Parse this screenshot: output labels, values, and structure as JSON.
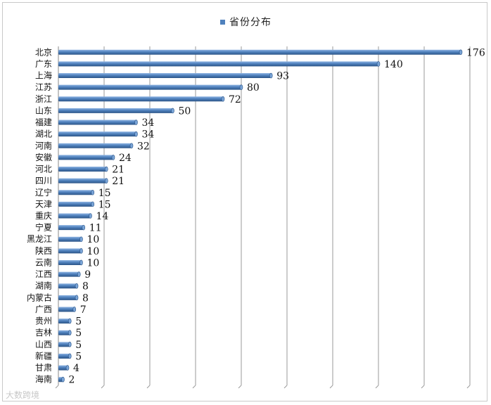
{
  "chart_data": {
    "type": "bar",
    "orientation": "horizontal",
    "legend": {
      "label": "省份分布",
      "position": "top",
      "color": "#4f81bd"
    },
    "categories": [
      "北京",
      "广东",
      "上海",
      "江苏",
      "浙江",
      "山东",
      "福建",
      "湖北",
      "河南",
      "安徽",
      "河北",
      "四川",
      "辽宁",
      "天津",
      "重庆",
      "宁夏",
      "黑龙江",
      "陕西",
      "云南",
      "江西",
      "湖南",
      "内蒙古",
      "广西",
      "贵州",
      "吉林",
      "山西",
      "新疆",
      "甘肃",
      "海南"
    ],
    "values": [
      176,
      140,
      93,
      80,
      72,
      50,
      34,
      34,
      32,
      24,
      21,
      21,
      15,
      15,
      14,
      11,
      10,
      10,
      10,
      9,
      8,
      8,
      7,
      5,
      5,
      5,
      5,
      4,
      2
    ],
    "xlim": [
      0,
      180
    ],
    "gridlines": "vertical",
    "data_labels": true,
    "bar_color": "#4f81bd"
  },
  "watermark": "大数跨境"
}
